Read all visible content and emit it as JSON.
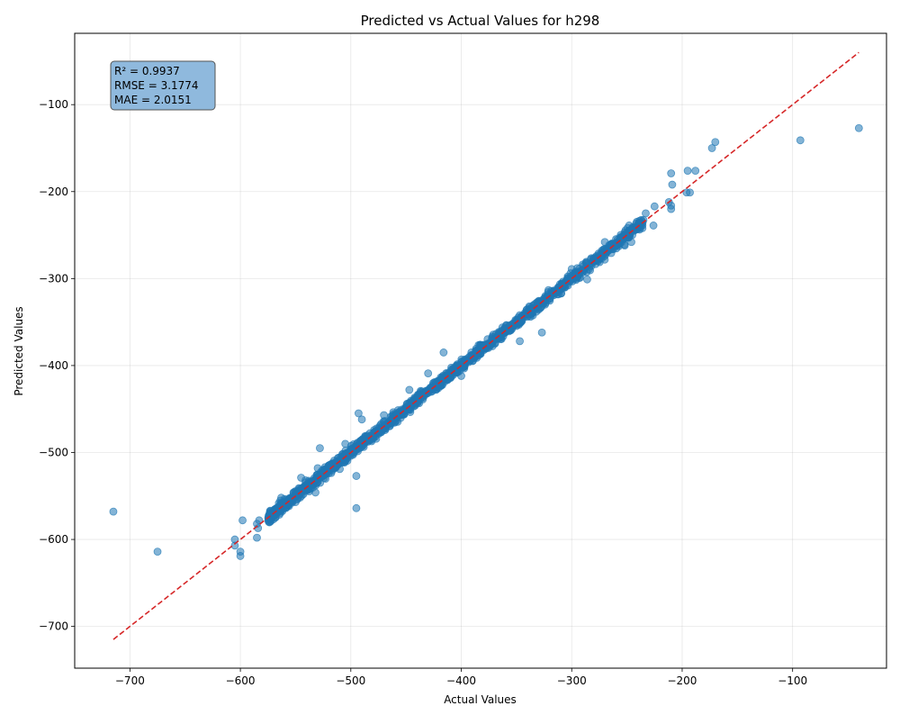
{
  "chart_data": {
    "type": "scatter",
    "title": "Predicted vs Actual Values for h298",
    "xlabel": "Actual Values",
    "ylabel": "Predicted Values",
    "xlim": [
      -750,
      -15
    ],
    "ylim": [
      -748,
      -18
    ],
    "xticks": [
      -700,
      -600,
      -500,
      -400,
      -300,
      -200,
      -100
    ],
    "yticks": [
      -700,
      -600,
      -500,
      -400,
      -300,
      -200,
      -100
    ],
    "xtick_labels": [
      "−700",
      "−600",
      "−500",
      "−400",
      "−300",
      "−200",
      "−100"
    ],
    "ytick_labels": [
      "−700",
      "−600",
      "−500",
      "−400",
      "−300",
      "−200",
      "−100"
    ],
    "grid": true,
    "point_color": "#1f77b4",
    "ideal_line": {
      "from": [
        -715,
        -715
      ],
      "to": [
        -40,
        -40
      ],
      "color": "#d62728",
      "style": "dashed"
    },
    "stats_box": {
      "lines": [
        "R² = 0.9937",
        "RMSE = 3.1774",
        "MAE = 2.0151"
      ],
      "background": "#8fb9dd",
      "position": "top-left"
    },
    "main_cloud": {
      "x_from": -575,
      "x_to": -235,
      "count": 1400
    },
    "points": [
      [
        -715,
        -568
      ],
      [
        -675,
        -614
      ],
      [
        -605,
        -600
      ],
      [
        -605,
        -607
      ],
      [
        -600,
        -619
      ],
      [
        -600,
        -614
      ],
      [
        -598,
        -578
      ],
      [
        -585,
        -598
      ],
      [
        -584,
        -587
      ],
      [
        -585,
        -582
      ],
      [
        -583,
        -578
      ],
      [
        -570,
        -573
      ],
      [
        -568,
        -567
      ],
      [
        -563,
        -552
      ],
      [
        -560,
        -563
      ],
      [
        -550,
        -557
      ],
      [
        -548,
        -545
      ],
      [
        -545,
        -529
      ],
      [
        -541,
        -532
      ],
      [
        -535,
        -537
      ],
      [
        -532,
        -546
      ],
      [
        -530,
        -518
      ],
      [
        -528,
        -495
      ],
      [
        -525,
        -527
      ],
      [
        -520,
        -515
      ],
      [
        -513,
        -510
      ],
      [
        -510,
        -519
      ],
      [
        -505,
        -490
      ],
      [
        -495,
        -527
      ],
      [
        -495,
        -564
      ],
      [
        -493,
        -455
      ],
      [
        -490,
        -462
      ],
      [
        -470,
        -457
      ],
      [
        -447,
        -428
      ],
      [
        -430,
        -409
      ],
      [
        -416,
        -385
      ],
      [
        -400,
        -412
      ],
      [
        -347,
        -372
      ],
      [
        -327,
        -362
      ],
      [
        -300,
        -289
      ],
      [
        -295,
        -288
      ],
      [
        -286,
        -301
      ],
      [
        -270,
        -258
      ],
      [
        -252,
        -262
      ],
      [
        -248,
        -239
      ],
      [
        -246,
        -258
      ],
      [
        -236,
        -242
      ],
      [
        -233,
        -225
      ],
      [
        -226,
        -239
      ],
      [
        -225,
        -217
      ],
      [
        -212,
        -212
      ],
      [
        -210,
        -220
      ],
      [
        -210,
        -216
      ],
      [
        -210,
        -179
      ],
      [
        -209,
        -192
      ],
      [
        -196,
        -201
      ],
      [
        -195,
        -176
      ],
      [
        -193,
        -201
      ],
      [
        -188,
        -176
      ],
      [
        -173,
        -150
      ],
      [
        -170,
        -143
      ],
      [
        -93,
        -141
      ],
      [
        -40,
        -127
      ]
    ]
  }
}
